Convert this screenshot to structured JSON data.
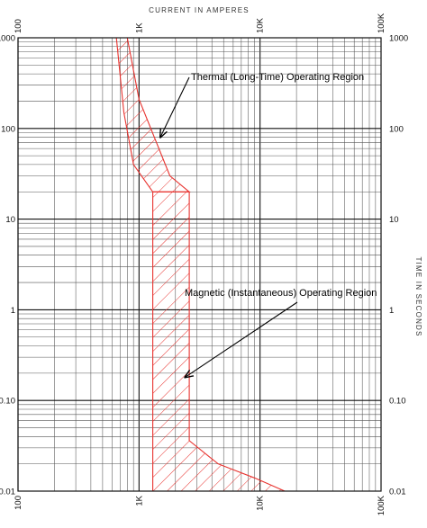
{
  "chart_data": {
    "type": "area",
    "title": "",
    "xlabel": "CURRENT IN AMPERES",
    "ylabel": "TIME IN SECONDS",
    "x_scale": "log",
    "y_scale": "log",
    "xlim": [
      100,
      100000
    ],
    "ylim": [
      0.01,
      1000
    ],
    "grid": true,
    "x_tick_labels": [
      {
        "value": 100,
        "label": "100"
      },
      {
        "value": 1000,
        "label": "1K"
      },
      {
        "value": 10000,
        "label": "10K"
      },
      {
        "value": 100000,
        "label": "100K"
      }
    ],
    "y_tick_labels": [
      {
        "value": 1000,
        "label": "1000"
      },
      {
        "value": 100,
        "label": "100"
      },
      {
        "value": 10,
        "label": "10"
      },
      {
        "value": 1,
        "label": "1"
      },
      {
        "value": 0.1,
        "label": "0.10"
      },
      {
        "value": 0.01,
        "label": "0.01"
      }
    ],
    "series": [
      {
        "name": "Thermal (Long-Time) Operating Region",
        "color": "#e8332f",
        "fill": "hatch",
        "boundary": [
          {
            "x": 650,
            "y": 1000
          },
          {
            "x": 800,
            "y": 1000
          },
          {
            "x": 1000,
            "y": 210
          },
          {
            "x": 1800,
            "y": 30
          },
          {
            "x": 2600,
            "y": 20
          },
          {
            "x": 1300,
            "y": 20
          },
          {
            "x": 900,
            "y": 40
          },
          {
            "x": 750,
            "y": 150
          },
          {
            "x": 650,
            "y": 1000
          }
        ]
      },
      {
        "name": "Magnetic (Instantaneous) Operating Region",
        "color": "#e8332f",
        "fill": "hatch",
        "boundary": [
          {
            "x": 1300,
            "y": 20
          },
          {
            "x": 2600,
            "y": 20
          },
          {
            "x": 2600,
            "y": 0.036
          },
          {
            "x": 4500,
            "y": 0.02
          },
          {
            "x": 9000,
            "y": 0.014
          },
          {
            "x": 16000,
            "y": 0.01
          },
          {
            "x": 1300,
            "y": 0.01
          },
          {
            "x": 1300,
            "y": 20
          }
        ]
      }
    ],
    "annotations": [
      {
        "text": "Thermal (Long-Time) Operating Region",
        "arrow_to": {
          "x": 1500,
          "y": 80
        }
      },
      {
        "text": "Magnetic (Instantaneous) Operating Region",
        "arrow_to": {
          "x": 2400,
          "y": 0.18
        }
      }
    ]
  }
}
